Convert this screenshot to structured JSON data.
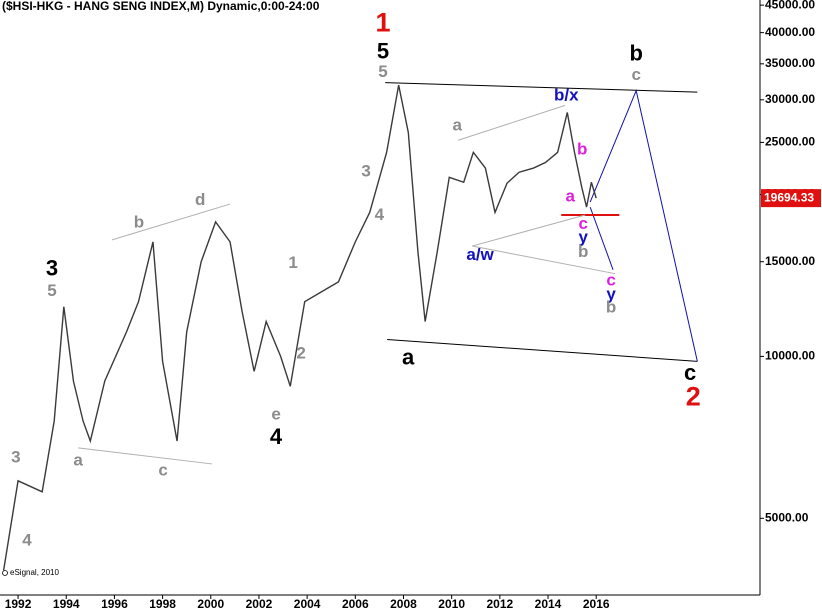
{
  "chart_data": {
    "type": "line",
    "title": "($HSI-HKG - HANG SENG INDEX,M) Dynamic,0:00-24:00",
    "footnote": "eSignal, 2010",
    "log_scale": true,
    "xlim": [
      1991.25,
      2022.8
    ],
    "ylim": [
      3600,
      46000
    ],
    "xticks": [
      1992,
      1994,
      1996,
      1998,
      2000,
      2002,
      2004,
      2006,
      2008,
      2010,
      2012,
      2014,
      2016
    ],
    "yticks": [
      {
        "value": 5000,
        "label": "5000.00"
      },
      {
        "value": 10000,
        "label": "10000.00"
      },
      {
        "value": 15000,
        "label": "15000.00"
      },
      {
        "value": 20000,
        "label": "20000.00"
      },
      {
        "value": 25000,
        "label": "25000.00"
      },
      {
        "value": 30000,
        "label": "30000.00"
      },
      {
        "value": 35000,
        "label": "35000.00"
      },
      {
        "value": 40000,
        "label": "40000.00"
      },
      {
        "value": 45000,
        "label": "45000.00"
      }
    ],
    "x": [
      1991.4,
      1992.0,
      1993.0,
      1993.5,
      1993.9,
      1994.3,
      1994.7,
      1995.0,
      1995.6,
      1996.5,
      1997.0,
      1997.6,
      1998.0,
      1998.6,
      1999.0,
      1999.6,
      2000.2,
      2000.8,
      2001.3,
      2001.8,
      2002.3,
      2002.9,
      2003.3,
      2003.9,
      2004.6,
      2005.3,
      2006.0,
      2006.6,
      2007.3,
      2007.8,
      2008.2,
      2008.6,
      2008.9,
      2009.4,
      2009.9,
      2010.5,
      2010.9,
      2011.4,
      2011.8,
      2012.3,
      2012.8,
      2013.4,
      2013.9,
      2014.4,
      2014.8,
      2015.1,
      2015.4,
      2015.6,
      2015.8,
      2016.0
    ],
    "series": [
      {
        "name": "HSI",
        "color": "#3a3a3a",
        "values": [
          4000,
          5870,
          5600,
          7580,
          12370,
          8990,
          7580,
          6960,
          9000,
          11100,
          12640,
          16330,
          9790,
          6960,
          11100,
          14990,
          17790,
          16330,
          12120,
          9380,
          11610,
          10000,
          8800,
          12640,
          13190,
          13760,
          16330,
          18530,
          23960,
          31950,
          26090,
          15640,
          11610,
          15640,
          21530,
          21080,
          23960,
          22400,
          18530,
          21000,
          22000,
          22400,
          22950,
          23960,
          28420,
          23960,
          20640,
          18950,
          21080,
          19694.33
        ]
      }
    ],
    "last_price": {
      "value": 19694.33,
      "label": "19694.33"
    },
    "trendlines": [
      {
        "color": "#000000",
        "x": [
          2007.24,
          2020.2
        ],
        "y": [
          32300,
          31000
        ]
      },
      {
        "color": "#000000",
        "x": [
          2007.32,
          2020.2
        ],
        "y": [
          10750,
          9790
        ]
      },
      {
        "color": "#1010b0",
        "x": [
          2015.75,
          2017.66,
          2020.2
        ],
        "y": [
          19360,
          31200,
          9790
        ]
      },
      {
        "color": "#1010b0",
        "x": [
          2015.75,
          2016.7
        ],
        "y": [
          18950,
          14490
        ]
      },
      {
        "color": "#e01010",
        "x": [
          2014.55,
          2016.96
        ],
        "y": [
          18320,
          18320
        ]
      },
      {
        "color": "#b0b0b0",
        "x": [
          2010.27,
          2014.71
        ],
        "y": [
          25230,
          29300
        ]
      },
      {
        "color": "#b0b0b0",
        "x": [
          2010.85,
          2015.54
        ],
        "y": [
          16040,
          18320
        ]
      },
      {
        "color": "#b0b0b0",
        "x": [
          2010.85,
          2016.79
        ],
        "y": [
          16040,
          14250
        ]
      },
      {
        "color": "#b0b0b0",
        "x": [
          1995.9,
          2000.8
        ],
        "y": [
          16470,
          19200
        ]
      },
      {
        "color": "#b0b0b0",
        "x": [
          1994.49,
          2000.05
        ],
        "y": [
          6760,
          6310
        ]
      }
    ],
    "annotations": [
      {
        "text": "1",
        "color": "#e01010",
        "x": 2007.15,
        "y": 41400
      },
      {
        "text": "5",
        "color": "#000000",
        "x": 2007.15,
        "y": 36700
      },
      {
        "text": "5",
        "color": "#8c8c8c",
        "x": 2007.15,
        "y": 33700
      },
      {
        "text": "b",
        "color": "#000000",
        "x": 2017.66,
        "y": 36400
      },
      {
        "text": "c",
        "color": "#8c8c8c",
        "x": 2017.66,
        "y": 33300
      },
      {
        "text": "b/x",
        "color": "#1010c0",
        "x": 2014.76,
        "y": 30500
      },
      {
        "text": "a",
        "color": "#8c8c8c",
        "x": 2010.23,
        "y": 26800
      },
      {
        "text": "b",
        "color": "#e020e0",
        "x": 2015.42,
        "y": 24200
      },
      {
        "text": "3",
        "color": "#8c8c8c",
        "x": 2006.45,
        "y": 22000
      },
      {
        "text": "a",
        "color": "#e020e0",
        "x": 2014.92,
        "y": 19800
      },
      {
        "text": "4",
        "color": "#8c8c8c",
        "x": 2007.0,
        "y": 18300
      },
      {
        "text": "b",
        "color": "#8c8c8c",
        "x": 1997.02,
        "y": 17700
      },
      {
        "text": "d",
        "color": "#8c8c8c",
        "x": 1999.56,
        "y": 19500
      },
      {
        "text": "c",
        "color": "#e020e0",
        "x": 2015.46,
        "y": 17600
      },
      {
        "text": "y",
        "color": "#1010c0",
        "x": 2015.46,
        "y": 16600
      },
      {
        "text": "b",
        "color": "#8c8c8c",
        "x": 2015.46,
        "y": 15600
      },
      {
        "text": "a/w",
        "color": "#1010c0",
        "x": 2011.18,
        "y": 15400
      },
      {
        "text": "3",
        "color": "#000000",
        "x": 1993.41,
        "y": 14500
      },
      {
        "text": "5",
        "color": "#8c8c8c",
        "x": 1993.41,
        "y": 13200
      },
      {
        "text": "1",
        "color": "#8c8c8c",
        "x": 2003.42,
        "y": 14900
      },
      {
        "text": "c",
        "color": "#e020e0",
        "x": 2016.62,
        "y": 13800
      },
      {
        "text": "y",
        "color": "#1010c0",
        "x": 2016.62,
        "y": 13000
      },
      {
        "text": "b",
        "color": "#8c8c8c",
        "x": 2016.62,
        "y": 12300
      },
      {
        "text": "2",
        "color": "#8c8c8c",
        "x": 2003.75,
        "y": 10100
      },
      {
        "text": "a",
        "color": "#000000",
        "x": 2008.19,
        "y": 9910
      },
      {
        "text": "c",
        "color": "#000000",
        "x": 2019.9,
        "y": 9260
      },
      {
        "text": "2",
        "color": "#e01010",
        "x": 2020.03,
        "y": 8360
      },
      {
        "text": "e",
        "color": "#8c8c8c",
        "x": 2002.71,
        "y": 7780
      },
      {
        "text": "4",
        "color": "#000000",
        "x": 2002.71,
        "y": 7050
      },
      {
        "text": "3",
        "color": "#8c8c8c",
        "x": 1991.91,
        "y": 6470
      },
      {
        "text": "a",
        "color": "#8c8c8c",
        "x": 1994.49,
        "y": 6390
      },
      {
        "text": "c",
        "color": "#8c8c8c",
        "x": 1998.02,
        "y": 6120
      },
      {
        "text": "4",
        "color": "#8c8c8c",
        "x": 1992.37,
        "y": 4540
      }
    ]
  }
}
